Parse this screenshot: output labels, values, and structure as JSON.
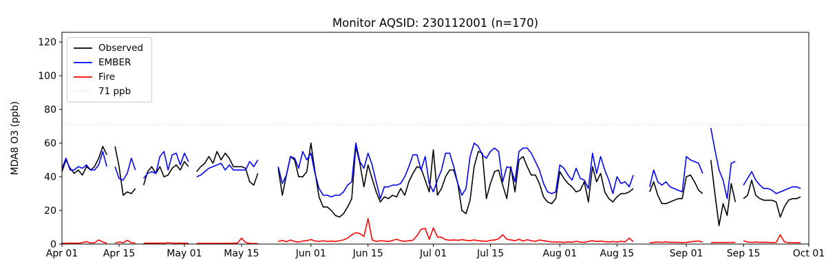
{
  "title": "Monitor AQSID: 230112001 (n=170)",
  "y_axis": {
    "label": "MDA8 O3 (ppb)",
    "ticks": [
      0,
      20,
      40,
      60,
      80,
      100,
      120
    ],
    "max_value": 125.8
  },
  "x_axis": {
    "ticks": [
      {
        "label": "Apr 01",
        "day": 0
      },
      {
        "label": "Apr 15",
        "day": 14
      },
      {
        "label": "May 01",
        "day": 30
      },
      {
        "label": "May 15",
        "day": 44
      },
      {
        "label": "Jun 01",
        "day": 61
      },
      {
        "label": "Jun 15",
        "day": 75
      },
      {
        "label": "Jul 01",
        "day": 91
      },
      {
        "label": "Jul 15",
        "day": 105
      },
      {
        "label": "Aug 01",
        "day": 122
      },
      {
        "label": "Aug 15",
        "day": 136
      },
      {
        "label": "Sep 01",
        "day": 153
      },
      {
        "label": "Sep 15",
        "day": 167
      },
      {
        "label": "Oct 01",
        "day": 183
      }
    ]
  },
  "legend": [
    {
      "label": "Observed",
      "color": "#000000",
      "style": "solid"
    },
    {
      "label": "EMBER",
      "color": "#0000ff",
      "style": "solid"
    },
    {
      "label": "Fire",
      "color": "#ff0000",
      "style": "solid"
    },
    {
      "label": "71 ppb",
      "color": "#d3d3d3",
      "style": "dotted"
    }
  ],
  "threshold": {
    "value": 71,
    "label": "71 ppb",
    "color": "#d3d3d3"
  },
  "chart_data": {
    "type": "line",
    "x_start_date": "Apr 01",
    "x_end_date": "Oct 01",
    "n_days": 183,
    "n_observed": 170,
    "missing_dates": [
      "Apr 13",
      "Apr 20",
      "May 03",
      "May 20",
      "May 21",
      "May 22",
      "May 23",
      "Aug 20",
      "Aug 21",
      "Aug 22",
      "Sep 06",
      "Sep 14",
      "Sep 30"
    ],
    "ylim": [
      0,
      125.8
    ],
    "grid": false,
    "legend_position": "upper left",
    "series": [
      {
        "name": "Observed",
        "color": "#000000",
        "values": [
          43,
          50,
          45,
          42,
          44,
          41,
          46,
          44,
          46,
          51,
          58,
          53,
          null,
          58,
          46,
          29,
          31,
          30,
          33,
          null,
          35,
          43,
          46,
          42,
          46,
          40,
          41,
          45,
          47,
          44,
          49,
          46,
          null,
          43,
          46,
          48,
          52,
          48,
          55,
          50,
          54,
          51,
          46,
          46,
          46,
          45,
          37,
          35,
          42,
          null,
          null,
          null,
          null,
          45,
          29,
          41,
          52,
          50,
          40,
          40,
          43,
          60,
          43,
          28,
          22,
          22,
          20,
          17,
          16,
          18,
          22,
          27,
          58,
          48,
          34,
          47,
          39,
          31,
          25,
          28,
          27,
          29,
          28,
          33,
          29,
          37,
          42,
          46,
          45,
          38,
          31,
          56,
          29,
          33,
          40,
          44,
          44,
          36,
          20,
          18,
          26,
          46,
          55,
          54,
          27,
          36,
          43,
          44,
          35,
          27,
          46,
          31,
          50,
          52,
          46,
          41,
          41,
          36,
          28,
          25,
          24,
          27,
          43,
          39,
          36,
          34,
          31,
          32,
          37,
          25,
          46,
          37,
          42,
          31,
          27,
          25,
          28,
          30,
          30,
          31,
          33,
          null,
          null,
          null,
          31,
          37,
          29,
          24,
          24,
          25,
          26,
          27,
          27,
          40,
          41,
          37,
          32,
          30,
          null,
          50,
          30,
          11,
          24,
          17,
          36,
          25,
          null,
          27,
          29,
          38,
          29,
          27,
          26,
          26,
          26,
          25,
          16,
          22,
          26,
          27,
          27,
          28,
          null
        ]
      },
      {
        "name": "EMBER",
        "color": "#0000ff",
        "values": [
          45,
          51,
          44,
          44,
          46,
          45,
          47,
          44,
          44,
          47,
          55,
          46,
          null,
          46,
          39,
          38,
          42,
          51,
          44,
          null,
          39,
          42,
          43,
          42,
          52,
          55,
          44,
          53,
          54,
          47,
          54,
          49,
          null,
          40,
          41,
          43,
          45,
          46,
          47,
          48,
          44,
          47,
          44,
          44,
          44,
          44,
          49,
          46,
          50,
          null,
          null,
          null,
          null,
          46,
          36,
          41,
          52,
          51,
          45,
          55,
          50,
          54,
          42,
          33,
          29,
          29,
          28,
          29,
          29,
          31,
          35,
          37,
          60,
          49,
          45,
          54,
          47,
          37,
          27,
          34,
          34,
          35,
          35,
          36,
          40,
          46,
          53,
          53,
          44,
          52,
          36,
          31,
          38,
          44,
          54,
          54,
          46,
          36,
          29,
          33,
          52,
          60,
          58,
          53,
          51,
          55,
          57,
          55,
          37,
          46,
          45,
          37,
          55,
          57,
          57,
          54,
          49,
          44,
          36,
          31,
          30,
          31,
          47,
          45,
          41,
          38,
          45,
          39,
          38,
          33,
          54,
          42,
          52,
          44,
          38,
          30,
          40,
          36,
          37,
          34,
          41,
          null,
          null,
          null,
          34,
          44,
          37,
          35,
          37,
          34,
          33,
          32,
          31,
          52,
          50,
          49,
          48,
          42,
          null,
          69,
          56,
          44,
          38,
          27,
          48,
          49,
          null,
          35,
          39,
          43,
          38,
          35,
          33,
          33,
          32,
          30,
          31,
          32,
          33,
          34,
          34,
          33,
          null
        ]
      },
      {
        "name": "Fire",
        "color": "#ff0000",
        "values": [
          0.5,
          0.5,
          0.6,
          0.5,
          0.5,
          0.8,
          1.5,
          0.6,
          0.8,
          2.5,
          1.2,
          0.5,
          null,
          0.6,
          1.2,
          0.8,
          2.2,
          0.8,
          0.6,
          null,
          0.5,
          0.5,
          0.6,
          0.5,
          0.6,
          0.5,
          0.8,
          0.6,
          0.5,
          0.6,
          0.5,
          0.5,
          null,
          0.4,
          0.4,
          0.5,
          0.4,
          0.5,
          0.4,
          0.4,
          0.5,
          0.4,
          0.5,
          0.6,
          3.5,
          1.0,
          0.4,
          0.3,
          0.3,
          null,
          null,
          null,
          null,
          1.5,
          2.2,
          1.4,
          2.4,
          1.5,
          1.2,
          1.8,
          2.0,
          2.7,
          1.8,
          1.5,
          2.0,
          1.5,
          1.8,
          1.5,
          2.0,
          2.5,
          3.5,
          5.5,
          6.8,
          6.2,
          4.5,
          15.2,
          2.5,
          1.5,
          2.0,
          1.8,
          1.5,
          2.2,
          2.8,
          2.0,
          1.6,
          2.0,
          2.3,
          5.0,
          8.8,
          9.3,
          2.8,
          9.6,
          4.2,
          4.0,
          2.6,
          2.3,
          2.5,
          2.2,
          2.6,
          2.2,
          2.1,
          2.4,
          2.0,
          1.8,
          1.6,
          2.2,
          2.4,
          3.2,
          5.5,
          2.8,
          2.4,
          2.0,
          2.8,
          1.8,
          2.6,
          2.0,
          1.6,
          2.4,
          2.0,
          1.6,
          1.3,
          1.2,
          1.2,
          1.0,
          1.3,
          1.1,
          1.6,
          1.2,
          1.0,
          1.6,
          2.0,
          1.5,
          1.8,
          1.4,
          1.2,
          1.5,
          1.2,
          1.6,
          1.3,
          3.5,
          1.4,
          null,
          null,
          null,
          0.8,
          1.0,
          1.2,
          1.0,
          1.3,
          1.0,
          1.1,
          1.0,
          0.9,
          1.0,
          1.3,
          1.6,
          1.8,
          1.2,
          null,
          0.9,
          1.0,
          0.9,
          1.0,
          0.9,
          1.0,
          1.0,
          null,
          2.0,
          1.2,
          1.0,
          1.2,
          1.0,
          1.1,
          1.0,
          0.9,
          1.0,
          5.5,
          1.4,
          0.8,
          0.8,
          0.9,
          0.7,
          null
        ]
      }
    ]
  }
}
